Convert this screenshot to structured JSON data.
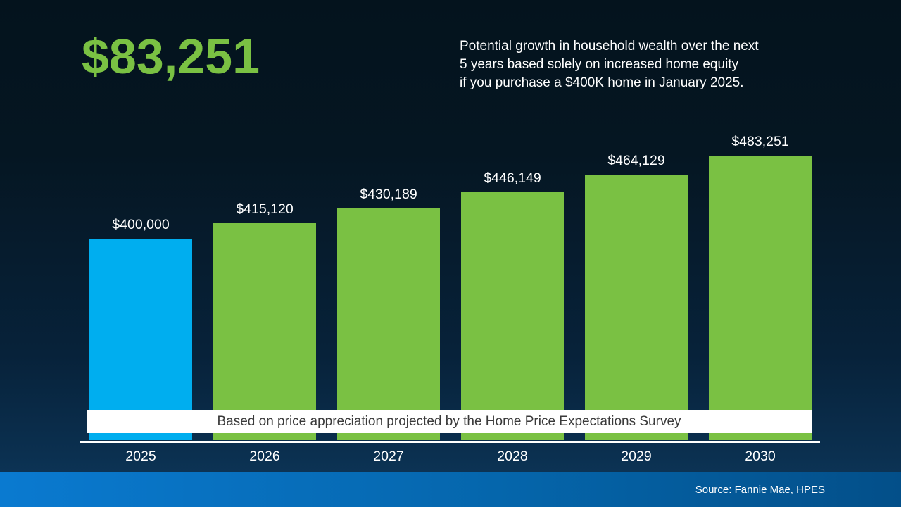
{
  "headline": {
    "amount": "$83,251",
    "description_lines": [
      "Potential growth in household wealth over the next",
      "5 years based solely on increased home equity",
      "if you purchase a $400K home in January 2025."
    ]
  },
  "banner": {
    "text": "Based on price appreciation projected by the Home Price Expectations Survey"
  },
  "source": {
    "text": "Source: Fannie Mae, HPES"
  },
  "colors": {
    "accent_green": "#7AC143",
    "accent_blue": "#00AEEF",
    "band_blue": "#0566AC",
    "background_dark": "#04131D"
  },
  "chart_data": {
    "type": "bar",
    "categories": [
      "2025",
      "2026",
      "2027",
      "2028",
      "2029",
      "2030"
    ],
    "values": [
      400000,
      415120,
      430189,
      446149,
      464129,
      483251
    ],
    "value_labels": [
      "$400,000",
      "$415,120",
      "$430,189",
      "$446,149",
      "$464,129",
      "$483,251"
    ],
    "bar_colors": [
      "#00AEEF",
      "#7AC143",
      "#7AC143",
      "#7AC143",
      "#7AC143",
      "#7AC143"
    ],
    "title": "",
    "xlabel": "",
    "ylabel": "",
    "ylim": [
      200000,
      500000
    ],
    "grid": false,
    "legend": "none",
    "annotation": "Based on price appreciation projected by the Home Price Expectations Survey"
  }
}
